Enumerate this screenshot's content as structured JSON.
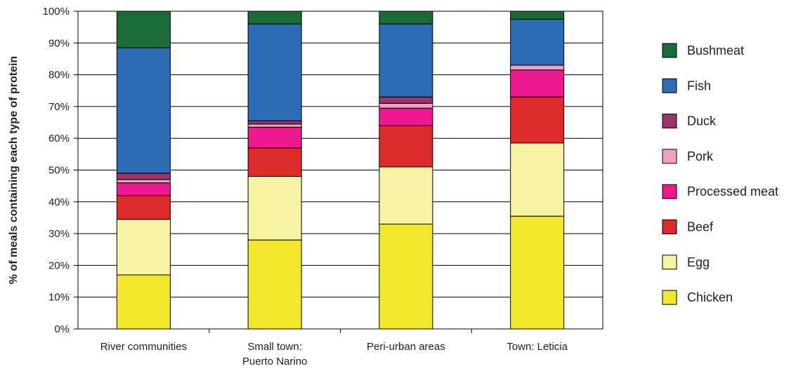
{
  "chart_data": {
    "type": "bar",
    "stacked": true,
    "title": "",
    "xlabel": "",
    "ylabel": "% of meals containing each type of protein",
    "ylim": [
      0,
      100
    ],
    "yticks": [
      "0%",
      "10%",
      "20%",
      "30%",
      "40%",
      "50%",
      "60%",
      "70%",
      "80%",
      "90%",
      "100%"
    ],
    "grid": true,
    "legend_position": "right",
    "categories": [
      [
        "River communities"
      ],
      [
        "Small town:",
        "Puerto Narino"
      ],
      [
        "Peri-urban areas"
      ],
      [
        "Town: Leticia"
      ]
    ],
    "series": [
      {
        "name": "Chicken",
        "color": "#f2e82b",
        "values": [
          17,
          28,
          33,
          35.5
        ]
      },
      {
        "name": "Egg",
        "color": "#f8f3a2",
        "values": [
          17.5,
          20,
          18,
          23
        ]
      },
      {
        "name": "Beef",
        "color": "#dd2a2a",
        "values": [
          7.5,
          9,
          13,
          14.5
        ]
      },
      {
        "name": "Processed meat",
        "color": "#ec1a8c",
        "values": [
          4,
          6.5,
          5.5,
          8.5
        ]
      },
      {
        "name": "Pork",
        "color": "#f29ec6",
        "values": [
          1,
          1,
          1.5,
          1.5
        ]
      },
      {
        "name": "Duck",
        "color": "#9b3469",
        "values": [
          2,
          1,
          2,
          0
        ]
      },
      {
        "name": "Fish",
        "color": "#2d6bb5",
        "values": [
          39.5,
          30.5,
          23,
          14.5
        ]
      },
      {
        "name": "Bushmeat",
        "color": "#1b6b34",
        "values": [
          11.5,
          4,
          4,
          2.5
        ]
      }
    ]
  }
}
